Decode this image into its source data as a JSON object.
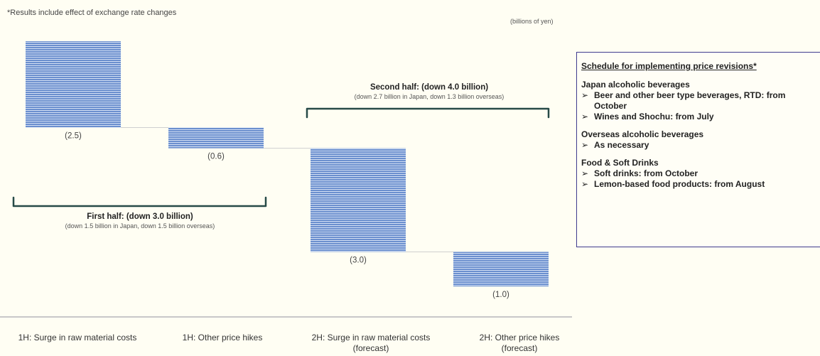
{
  "header": {
    "note": "*Results include effect of exchange rate changes",
    "unit": "(billions of yen)"
  },
  "chart_data": {
    "type": "bar",
    "subtype": "waterfall",
    "categories": [
      "1H: Surge in raw material costs",
      "1H: Other price hikes",
      "2H: Surge in raw material costs (forecast)",
      "2H: Other price hikes (forecast)"
    ],
    "category_lines": [
      [
        "1H: Surge in raw material costs"
      ],
      [
        "1H: Other price hikes"
      ],
      [
        "2H: Surge in raw material costs",
        "(forecast)"
      ],
      [
        "2H: Other price hikes",
        "(forecast)"
      ]
    ],
    "values": [
      -2.5,
      -0.6,
      -3.0,
      -1.0
    ],
    "value_labels": [
      "(2.5)",
      "(0.6)",
      "(3.0)",
      "(1.0)"
    ],
    "unit": "billions of yen",
    "bar_color": "#6b8fce",
    "ylim": [
      -7.1,
      0
    ]
  },
  "brackets": [
    {
      "title": "First half: (down 3.0 billion)",
      "subtitle": "(down 1.5 billion in Japan, down 1.5 billion overseas)"
    },
    {
      "title": "Second half: (down 4.0 billion)",
      "subtitle": "(down 2.7 billion in Japan, down 1.3 billion overseas)"
    }
  ],
  "schedule": {
    "title": "Schedule for implementing price revisions*",
    "sections": [
      {
        "heading": "Japan alcoholic beverages",
        "items": [
          "Beer and other beer type beverages, RTD: from October",
          "Wines and Shochu: from July"
        ]
      },
      {
        "heading": "Overseas alcoholic beverages",
        "items": [
          "As necessary"
        ]
      },
      {
        "heading": "Food & Soft Drinks",
        "items": [
          "Soft drinks: from October",
          "Lemon-based food products: from August"
        ]
      }
    ],
    "arrow_glyph": "➢",
    "border_color": "#3f3b8e"
  }
}
